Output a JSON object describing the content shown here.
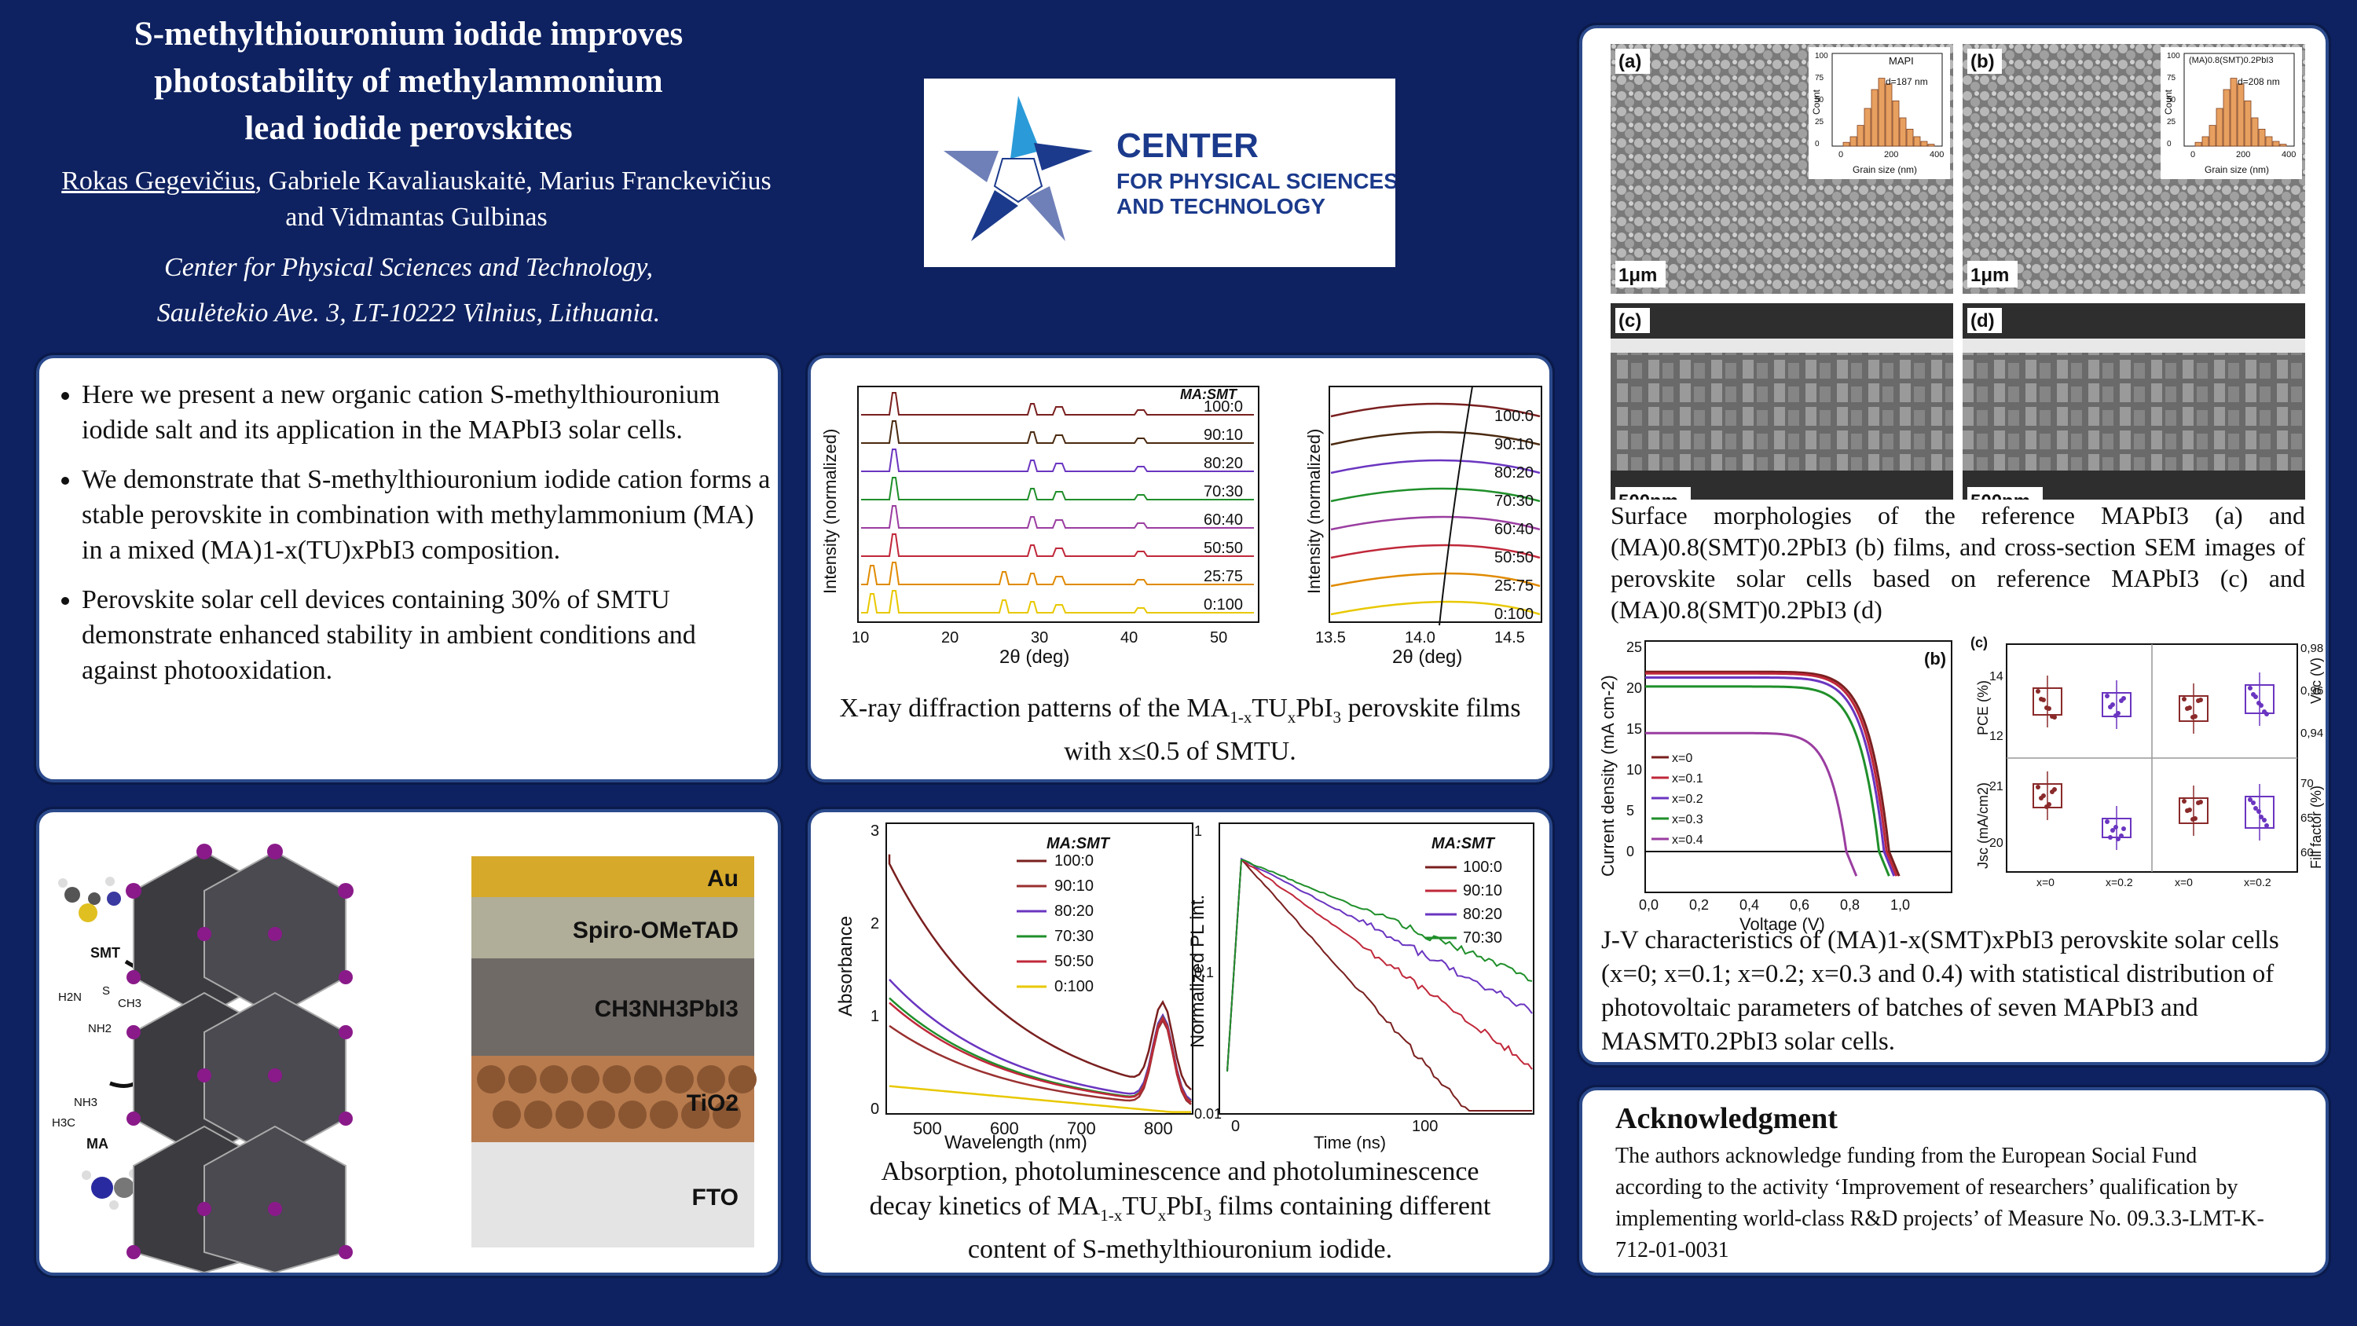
{
  "title": {
    "line1": "S-methylthiouronium iodide improves",
    "line2": "photostability of  methylammonium",
    "line3": "lead iodide perovskites"
  },
  "authors": {
    "presenter": "Rokas Gegevičius",
    "rest": ", Gabriele Kavaliauskaitė, Marius Franckevičius",
    "line2": "and Vidmantas Gulbinas"
  },
  "affiliation": {
    "line1": "Center for Physical Sciences and Technology,",
    "line2": "Saulėtekio Ave. 3, LT-10222 Vilnius, Lithuania."
  },
  "logo": {
    "line1": "CENTER",
    "line2": "FOR PHYSICAL SCIENCES",
    "line3": "AND TECHNOLOGY",
    "colors": [
      "#2a9bd8",
      "#1b3a8c",
      "#6f7fb8"
    ]
  },
  "bullets": [
    "Here we present a new organic cation S-methylthiouronium iodide salt and its application in the MAPbI3 solar cells.",
    "We demonstrate that S-methylthiouronium iodide cation forms a stable perovskite in combination with methylammonium (MA) in a mixed (MA)1-x(TU)xPbI3 composition.",
    "Perovskite solar cell devices containing 30% of SMTU demonstrate enhanced stability in ambient conditions and against photooxidation."
  ],
  "structure": {
    "smt_label": "SMT",
    "ma_label": "MA",
    "smt_formula_left": "H2N",
    "smt_formula_s": "S",
    "smt_formula_ch3": "CH3",
    "smt_formula_nh2": "NH2",
    "ma_formula_h3c": "H3C",
    "ma_formula_nh3": "NH3",
    "layers": [
      "Au",
      "Spiro-OMeTAD",
      "CH3NH3PbI3",
      "TiO2",
      "FTO"
    ]
  },
  "xrd": {
    "legend_title": "MA:SMT",
    "ratios": [
      "100:0",
      "90:10",
      "80:20",
      "70:30",
      "60:40",
      "50:50",
      "25:75",
      "0:100"
    ],
    "ylabel": "Intensity (normalized)",
    "xlabel": "2θ (deg)",
    "left_ticks": [
      "10",
      "20",
      "30",
      "40",
      "50"
    ],
    "right_ticks": [
      "13.5",
      "14.0",
      "14.5"
    ],
    "colors": [
      "#7a1f1f",
      "#4a2a10",
      "#6a35c0",
      "#1f8f2a",
      "#9a3da0",
      "#c0283a",
      "#e08a00",
      "#e8c800"
    ],
    "caption_a": "X-ray diffraction patterns of the MA",
    "caption_b": "1-x",
    "caption_c": "TU",
    "caption_d": "x",
    "caption_e": "PbI",
    "caption_f": "3",
    "caption_g": " perovskite films with x≤0.5 of SMTU."
  },
  "abs": {
    "legend_title": "MA:SMT",
    "ratios": [
      "100:0",
      "90:10",
      "80:20",
      "70:30",
      "50:50",
      "0:100"
    ],
    "colors": [
      "#7a1f1f",
      "#9a3030",
      "#6a35c0",
      "#1f8f2a",
      "#c0283a",
      "#e8c800"
    ],
    "ylabel": "Absorbance",
    "xlabel": "Wavelength (nm)",
    "xticks": [
      "500",
      "600",
      "700",
      "800"
    ],
    "yticks": [
      "0",
      "1",
      "2",
      "3"
    ]
  },
  "pl": {
    "legend_title": "MA:SMT",
    "ratios": [
      "100:0",
      "90:10",
      "80:20",
      "70:30"
    ],
    "colors": [
      "#7a1f1f",
      "#c0283a",
      "#6a35c0",
      "#1f8f2a"
    ],
    "ylabel": "Normalized PL int.",
    "xlabel": "Time (ns)",
    "xticks": [
      "0",
      "100"
    ],
    "yticks": [
      "1",
      "0.1",
      "0.01"
    ]
  },
  "abs_caption": {
    "l1": "Absorption, photoluminescence and photoluminescence",
    "l2a": "decay kinetics of  MA",
    "l2b": "1-x",
    "l2c": "TU",
    "l2d": "x",
    "l2e": "PbI",
    "l2f": "3",
    "l2g": " films containing different",
    "l3": "content of S-methylthiouronium iodide."
  },
  "sem": {
    "labels": [
      "(a)",
      "(b)",
      "(c)",
      "(d)"
    ],
    "scale_top": "1μm",
    "scale_bottom": "500nm",
    "inset_a_title": "MAPI",
    "inset_a_d": "d=187 nm",
    "inset_b_title": "(MA)0.8(SMT)0.2PbI3",
    "inset_b_d": "d=208 nm",
    "inset_xlabel": "Grain size (nm)",
    "inset_ylabel": "Count",
    "inset_xticks": [
      "0",
      "200",
      "400"
    ],
    "inset_yticks": [
      "100",
      "75",
      "50",
      "25",
      "0"
    ],
    "caption": "Surface morphologies of  the reference MAPbI3 (a) and (MA)0.8(SMT)0.2PbI3 (b) films, and cross-section SEM images of perovskite solar cells based on reference MAPbI3 (c) and (MA)0.8(SMT)0.2PbI3 (d)"
  },
  "jv": {
    "panel_b": "(b)",
    "panel_c": "(c)",
    "ylabel": "Current density (mA cm-2)",
    "xlabel": "Voltage (V)",
    "xticks": [
      "0,0",
      "0,2",
      "0,4",
      "0,6",
      "0,8",
      "1,0"
    ],
    "yticks": [
      "25",
      "20",
      "15",
      "10",
      "5",
      "0"
    ],
    "legend": [
      "x=0",
      "x=0.1",
      "x=0.2",
      "x=0.3",
      "x=0.4"
    ],
    "colors": [
      "#7a1f1f",
      "#c0283a",
      "#6a35c0",
      "#1f8f2a",
      "#9a3da0"
    ],
    "stats_labels": {
      "pce": "PCE (%)",
      "voc": "Voc (V)",
      "jsc": "Jsc (mA/cm2)",
      "ff": "Fill factor (%)"
    },
    "pce_ticks": [
      "14",
      "12"
    ],
    "voc_ticks": [
      "0,98",
      "0,96",
      "0,94"
    ],
    "jsc_ticks": [
      "21",
      "20"
    ],
    "ff_ticks": [
      "70",
      "65",
      "60"
    ],
    "group_labels": [
      "x=0",
      "x=0.2",
      "x=0",
      "x=0.2"
    ],
    "caption": "J-V characteristics of (MA)1-x(SMT)xPbI3 perovskite solar cells (x=0; x=0.1; x=0.2; x=0.3 and 0.4) with statistical distribution of photovoltaic parameters of batches of seven MAPbI3 and MASMT0.2PbI3 solar cells."
  },
  "ack": {
    "heading": "Acknowledgment",
    "text": "The authors acknowledge funding from the European Social Fund according to the activity ‘Improvement of researchers’ qualification by implementing world-class R&D projects’ of Measure No. 09.3.3-LMT-K-712-01-0031"
  }
}
